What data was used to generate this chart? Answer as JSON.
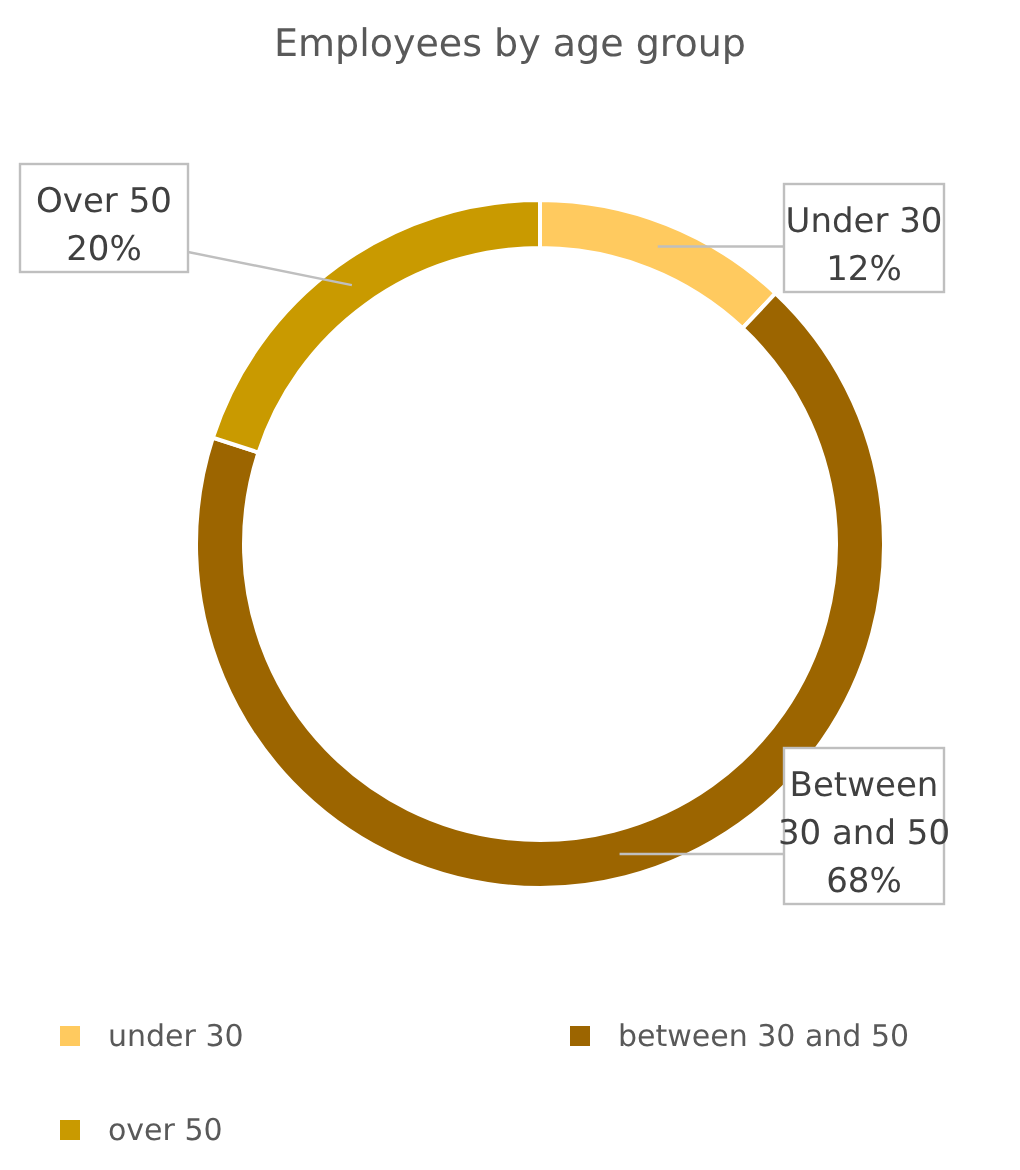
{
  "chart_data": {
    "type": "donut",
    "title": "Employees by age group",
    "categories": [
      "under 30",
      "between 30 and 50",
      "over 50"
    ],
    "values": [
      12,
      68,
      20
    ],
    "colors": [
      "#ffca5f",
      "#9c6500",
      "#c99a00"
    ],
    "value_labels": [
      "Under 30\n12%",
      "Between\n30 and 50\n68%",
      "Over 50\n20%"
    ],
    "legend": "bottom"
  }
}
